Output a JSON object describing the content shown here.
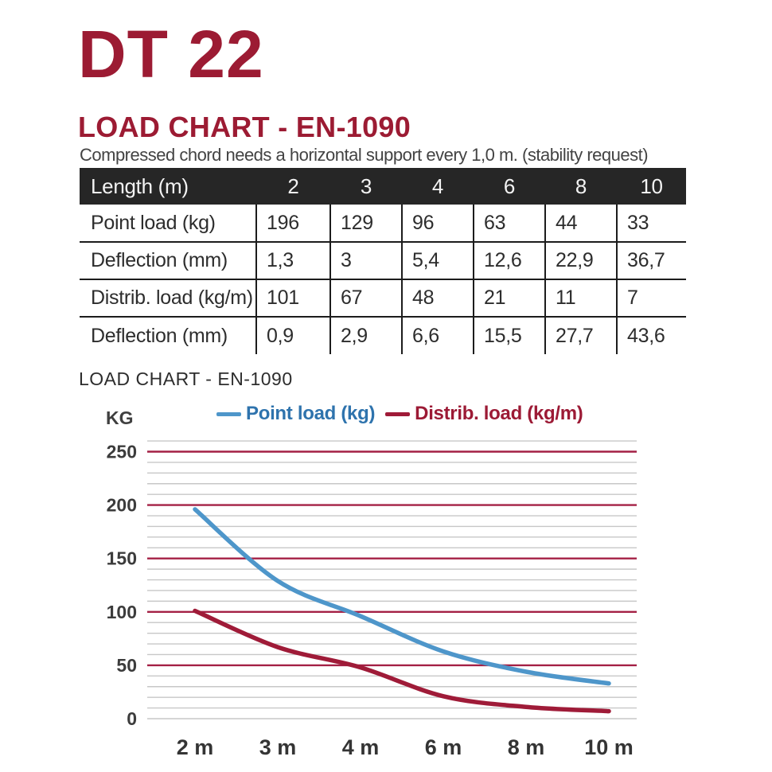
{
  "colors": {
    "brand_red": "#9C1B33",
    "table_header_bg": "#262626",
    "table_border": "#1C1C1C",
    "major_gridline": "#A42045",
    "minor_gridline": "#C7C7C7",
    "point_load_line": "#4E96CA",
    "distrib_load_line": "#9F1B38"
  },
  "header": {
    "product_title": "DT 22"
  },
  "section": {
    "heading": "LOAD CHART - EN-1090",
    "subtitle": "Compressed chord needs a horizontal support every 1,0 m. (stability request)"
  },
  "table": {
    "header": {
      "label": "Length (m)",
      "columns": [
        "2",
        "3",
        "4",
        "6",
        "8",
        "10"
      ]
    },
    "rows": [
      {
        "label": "Point load (kg)",
        "values": [
          "196",
          "129",
          "96",
          "63",
          "44",
          "33"
        ]
      },
      {
        "label": "Deflection (mm)",
        "values": [
          "1,3",
          "3",
          "5,4",
          "12,6",
          "22,9",
          "36,7"
        ]
      },
      {
        "label": "Distrib. load (kg/m)",
        "values": [
          "101",
          "67",
          "48",
          "21",
          "11",
          "7"
        ]
      },
      {
        "label": "Deflection (mm)",
        "values": [
          "0,9",
          "2,9",
          "6,6",
          "15,5",
          "27,7",
          "43,6"
        ]
      }
    ]
  },
  "chart": {
    "title": "LOAD CHART - EN-1090",
    "y_axis_unit": "KG"
  },
  "chart_data": {
    "type": "line",
    "categories": [
      "2 m",
      "3 m",
      "4 m",
      "6 m",
      "8 m",
      "10 m"
    ],
    "series": [
      {
        "name": "Point load (kg)",
        "values": [
          196,
          129,
          96,
          63,
          44,
          33
        ],
        "color": "#4E96CA",
        "label_color": "#2E73AD"
      },
      {
        "name": "Distrib. load (kg/m)",
        "values": [
          101,
          67,
          48,
          21,
          11,
          7
        ],
        "color": "#9F1B38",
        "label_color": "#9C1A35"
      }
    ],
    "title": "LOAD CHART - EN-1090",
    "xlabel": "",
    "ylabel": "KG",
    "ylim": [
      0,
      260
    ],
    "yticks": [
      0,
      50,
      100,
      150,
      200,
      250
    ],
    "minor_unit": 10,
    "major_gridline_color": "#A42045",
    "minor_gridline_color": "#C7C7C7",
    "grid": true,
    "legend_position": "top",
    "smooth_lines": true
  }
}
